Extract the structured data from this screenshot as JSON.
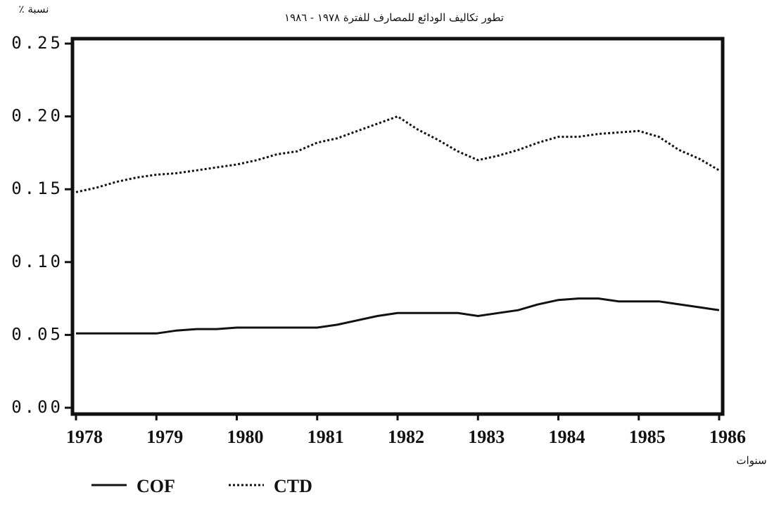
{
  "chart_data": {
    "type": "line",
    "title": "تطور تكاليف الودائع للمصارف للفترة ١٩٧٨ - ١٩٨٦",
    "y_label": "نسبة ٪",
    "x_label": "سنوات",
    "x": [
      1978,
      1978.25,
      1978.5,
      1978.75,
      1979,
      1979.25,
      1979.5,
      1979.75,
      1980,
      1980.25,
      1980.5,
      1980.75,
      1981,
      1981.25,
      1981.5,
      1981.75,
      1982,
      1982.25,
      1982.5,
      1982.75,
      1983,
      1983.25,
      1983.5,
      1983.75,
      1984,
      1984.25,
      1984.5,
      1984.75,
      1985,
      1985.25,
      1985.5,
      1985.75,
      1986
    ],
    "series": [
      {
        "name": "COF",
        "color": "#111111",
        "dash": "solid",
        "values": [
          0.051,
          0.051,
          0.051,
          0.051,
          0.051,
          0.053,
          0.054,
          0.054,
          0.055,
          0.055,
          0.055,
          0.055,
          0.055,
          0.057,
          0.06,
          0.063,
          0.065,
          0.065,
          0.065,
          0.065,
          0.063,
          0.065,
          0.067,
          0.071,
          0.074,
          0.075,
          0.075,
          0.073,
          0.073,
          0.073,
          0.071,
          0.069,
          0.067
        ]
      },
      {
        "name": "CTD",
        "color": "#111111",
        "dash": "dotted",
        "values": [
          0.148,
          0.151,
          0.155,
          0.158,
          0.16,
          0.161,
          0.163,
          0.165,
          0.167,
          0.17,
          0.174,
          0.176,
          0.182,
          0.185,
          0.19,
          0.195,
          0.2,
          0.191,
          0.184,
          0.176,
          0.17,
          0.173,
          0.177,
          0.182,
          0.186,
          0.186,
          0.188,
          0.189,
          0.19,
          0.186,
          0.177,
          0.171,
          0.163
        ]
      }
    ],
    "xlim": [
      1978,
      1986
    ],
    "xticks": [
      1978,
      1979,
      1980,
      1981,
      1982,
      1983,
      1984,
      1985,
      1986
    ],
    "ylim": [
      0,
      0.25
    ],
    "yticks": [
      {
        "value": 0,
        "label": "0.00"
      },
      0.05,
      {
        "value": 0.1,
        "label": "0.10"
      },
      0.15,
      {
        "value": 0.2,
        "label": "0.20"
      },
      0.25
    ]
  }
}
